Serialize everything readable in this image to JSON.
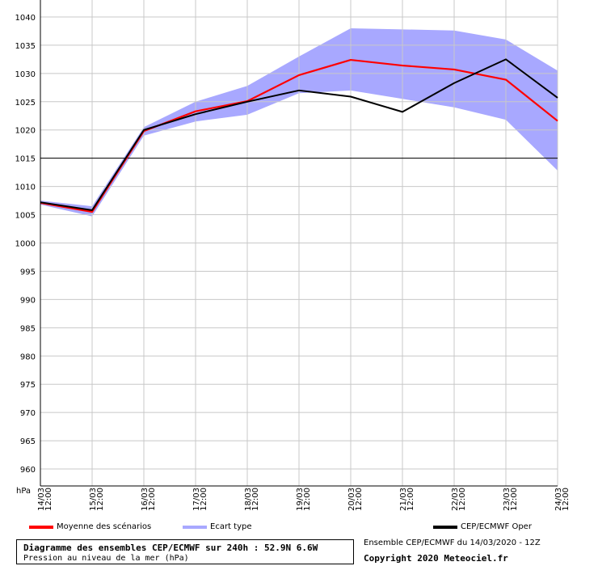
{
  "chart_data": {
    "type": "line",
    "title": "Diagramme des ensembles CEP/ECMWF sur 240h : 52.9N 6.6W",
    "subtitle": "Pression au niveau de la mer (hPa)",
    "ylabel": "hPa",
    "ylim": [
      957,
      1043
    ],
    "yticks": [
      960,
      965,
      970,
      975,
      980,
      985,
      990,
      995,
      1000,
      1005,
      1010,
      1015,
      1020,
      1025,
      1030,
      1035,
      1040
    ],
    "reference_line": 1015,
    "categories": [
      "14/03 12:00",
      "15/03 12:00",
      "16/03 12:00",
      "17/03 12:00",
      "18/03 12:00",
      "19/03 12:00",
      "20/03 12:00",
      "21/03 12:00",
      "22/03 12:00",
      "23/03 12:00",
      "24/03 12:00"
    ],
    "band": {
      "name": "Ecart type",
      "color": "#a8a8ff",
      "upper": [
        1007.5,
        1006.5,
        1020.5,
        1025.0,
        1027.8,
        1033.0,
        1038.0,
        1037.8,
        1037.6,
        1036.0,
        1030.5
      ],
      "lower": [
        1006.8,
        1004.7,
        1019.0,
        1021.5,
        1022.7,
        1026.5,
        1027.0,
        1025.5,
        1024.0,
        1021.8,
        1012.8
      ]
    },
    "series": [
      {
        "name": "Moyenne des scénarios",
        "color": "#ff0000",
        "values": [
          1007.1,
          1005.5,
          1019.8,
          1023.3,
          1025.1,
          1029.7,
          1032.4,
          1031.4,
          1030.7,
          1028.9,
          1021.6
        ]
      },
      {
        "name": "CEP/ECMWF Oper",
        "color": "#000000",
        "values": [
          1007.2,
          1005.8,
          1020.0,
          1022.8,
          1025.0,
          1027.0,
          1025.9,
          1023.2,
          1028.3,
          1032.5,
          1025.7
        ]
      }
    ],
    "grid": true,
    "legend_position": "bottom"
  },
  "footer": {
    "title": "Diagramme des ensembles CEP/ECMWF sur 240h : 52.9N 6.6W",
    "subtitle": "Pression au niveau de la mer (hPa)",
    "source": "Ensemble CEP/ECMWF du 14/03/2020 - 12Z",
    "copyright": "Copyright 2020 Meteociel.fr"
  },
  "legend": {
    "mean_label": "Moyenne des scénarios",
    "band_label": "Ecart type",
    "oper_label": "CEP/ECMWF Oper"
  }
}
